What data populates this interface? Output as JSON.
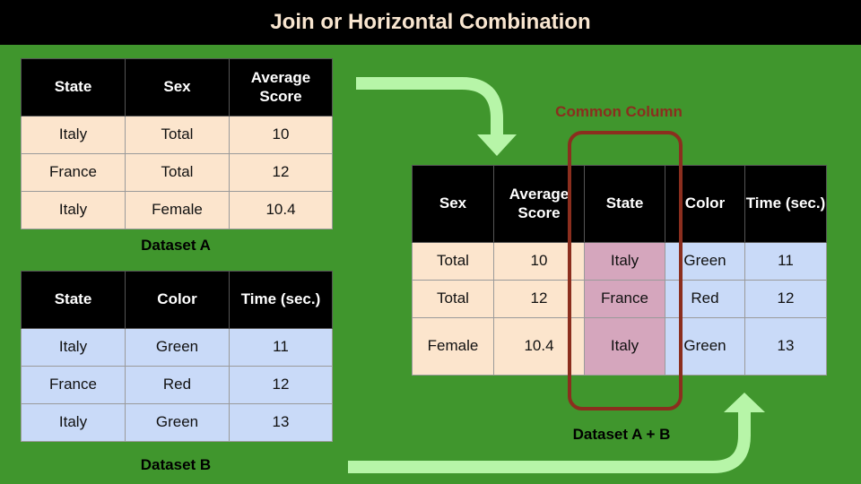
{
  "title": "Join or Horizontal Combination",
  "dataset_a": {
    "caption": "Dataset A",
    "headers": [
      "State",
      "Sex",
      "Average Score"
    ],
    "rows": [
      [
        "Italy",
        "Total",
        "10"
      ],
      [
        "France",
        "Total",
        "12"
      ],
      [
        "Italy",
        "Female",
        "10.4"
      ]
    ]
  },
  "dataset_b": {
    "caption": "Dataset B",
    "headers": [
      "State",
      "Color",
      "Time (sec.)"
    ],
    "rows": [
      [
        "Italy",
        "Green",
        "11"
      ],
      [
        "France",
        "Red",
        "12"
      ],
      [
        "Italy",
        "Green",
        "13"
      ]
    ]
  },
  "dataset_ab": {
    "caption": "Dataset A + B",
    "common_label": "Common Column",
    "headers": [
      "Sex",
      "Average Score",
      "State",
      "Color",
      "Time (sec.)"
    ],
    "rows": [
      [
        "Total",
        "10",
        "Italy",
        "Green",
        "11"
      ],
      [
        "Total",
        "12",
        "France",
        "Red",
        "12"
      ],
      [
        "Female",
        "10.4",
        "Italy",
        "Green",
        "13"
      ]
    ]
  },
  "colors": {
    "background": "#40962d",
    "header": "#000000",
    "dataset_a_cells": "#fce5cd",
    "dataset_b_cells": "#c9daf8",
    "common_column": "#d5a6bd",
    "common_outline": "#8b2e1e",
    "arrow": "#b7f5a8"
  }
}
